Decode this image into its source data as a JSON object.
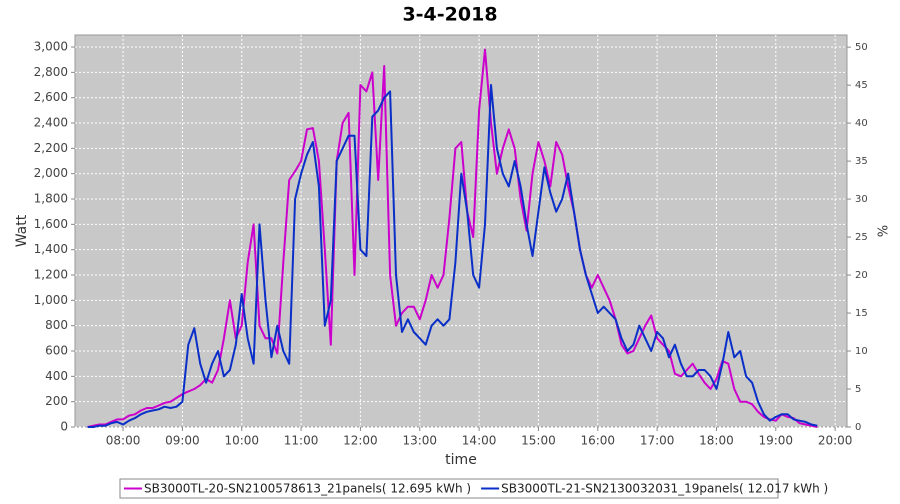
{
  "chart_data": {
    "type": "line",
    "title": "3-4-2018",
    "x_label": "time",
    "y_label": "Watt",
    "y2_label": "%",
    "xlim": [
      7.19,
      20.2
    ],
    "xticks": [
      {
        "value": 8,
        "label": "08:00"
      },
      {
        "value": 9,
        "label": "09:00"
      },
      {
        "value": 10,
        "label": "10:00"
      },
      {
        "value": 11,
        "label": "11:00"
      },
      {
        "value": 12,
        "label": "12:00"
      },
      {
        "value": 13,
        "label": "13:00"
      },
      {
        "value": 14,
        "label": "14:00"
      },
      {
        "value": 15,
        "label": "15:00"
      },
      {
        "value": 16,
        "label": "16:00"
      },
      {
        "value": 17,
        "label": "17:00"
      },
      {
        "value": 18,
        "label": "18:00"
      },
      {
        "value": 19,
        "label": "19:00"
      },
      {
        "value": 20,
        "label": "20:00"
      }
    ],
    "ylim": [
      0,
      3095
    ],
    "yticks": [
      0,
      200,
      400,
      600,
      800,
      {
        "value": 1000,
        "label": "1,000"
      },
      {
        "value": 1200,
        "label": "1,200"
      },
      {
        "value": 1400,
        "label": "1,400"
      },
      {
        "value": 1600,
        "label": "1,600"
      },
      {
        "value": 1800,
        "label": "1,800"
      },
      {
        "value": 2000,
        "label": "2,000"
      },
      {
        "value": 2200,
        "label": "2,200"
      },
      {
        "value": 2400,
        "label": "2,400"
      },
      {
        "value": 2600,
        "label": "2,600"
      },
      {
        "value": 2800,
        "label": "2,800"
      },
      {
        "value": 3000,
        "label": "3,000"
      }
    ],
    "y2lim": [
      0,
      51.6
    ],
    "y2ticks": [
      0,
      5,
      10,
      15,
      20,
      25,
      30,
      35,
      40,
      45,
      50
    ],
    "grid": true,
    "legend": "bottom",
    "x": [
      7.4,
      7.5,
      7.6,
      7.7,
      7.8,
      7.9,
      8.0,
      8.1,
      8.2,
      8.3,
      8.4,
      8.5,
      8.6,
      8.7,
      8.8,
      8.9,
      9.0,
      9.1,
      9.2,
      9.3,
      9.4,
      9.5,
      9.6,
      9.7,
      9.8,
      9.9,
      10.0,
      10.1,
      10.2,
      10.3,
      10.4,
      10.5,
      10.6,
      10.7,
      10.8,
      10.9,
      11.0,
      11.1,
      11.2,
      11.3,
      11.4,
      11.5,
      11.6,
      11.7,
      11.8,
      11.9,
      12.0,
      12.1,
      12.2,
      12.3,
      12.4,
      12.5,
      12.6,
      12.7,
      12.8,
      12.9,
      13.0,
      13.1,
      13.2,
      13.3,
      13.4,
      13.5,
      13.6,
      13.7,
      13.8,
      13.9,
      14.0,
      14.1,
      14.2,
      14.3,
      14.4,
      14.5,
      14.6,
      14.7,
      14.8,
      14.9,
      15.0,
      15.1,
      15.2,
      15.3,
      15.4,
      15.5,
      15.6,
      15.7,
      15.8,
      15.9,
      16.0,
      16.1,
      16.2,
      16.3,
      16.4,
      16.5,
      16.6,
      16.7,
      16.8,
      16.9,
      17.0,
      17.1,
      17.2,
      17.3,
      17.4,
      17.5,
      17.6,
      17.7,
      17.8,
      17.9,
      18.0,
      18.1,
      18.2,
      18.3,
      18.4,
      18.5,
      18.6,
      18.7,
      18.8,
      18.9,
      19.0,
      19.1,
      19.2,
      19.3,
      19.4,
      19.5,
      19.6,
      19.7
    ],
    "series": [
      {
        "name": "SB3000TL-20-SN2100578613_21panels( 12.695 kWh )",
        "color": "#cc00cc",
        "values": [
          0,
          10,
          20,
          20,
          40,
          60,
          60,
          90,
          100,
          130,
          150,
          150,
          170,
          190,
          200,
          230,
          260,
          280,
          300,
          330,
          380,
          350,
          450,
          700,
          1000,
          700,
          800,
          1300,
          1600,
          800,
          700,
          700,
          580,
          1300,
          1950,
          2020,
          2100,
          2350,
          2360,
          2100,
          1400,
          650,
          2100,
          2400,
          2480,
          1200,
          2700,
          2650,
          2800,
          1950,
          2850,
          1200,
          800,
          900,
          950,
          950,
          850,
          1000,
          1200,
          1100,
          1200,
          1650,
          2200,
          2250,
          1700,
          1500,
          2500,
          2980,
          2400,
          2000,
          2200,
          2350,
          2200,
          1800,
          1550,
          2000,
          2250,
          2100,
          1900,
          2250,
          2150,
          1900,
          1700,
          1400,
          1200,
          1100,
          1200,
          1100,
          1000,
          850,
          650,
          580,
          600,
          700,
          800,
          880,
          700,
          650,
          600,
          420,
          400,
          450,
          500,
          420,
          350,
          300,
          380,
          520,
          500,
          300,
          200,
          200,
          180,
          120,
          80,
          60,
          50,
          100,
          80,
          70,
          30,
          20,
          10,
          0
        ]
      },
      {
        "name": "SB3000TL-21-SN2130032031_19panels( 12.017 kWh )",
        "color": "#0a2fc8",
        "values": [
          0,
          0,
          10,
          10,
          30,
          40,
          20,
          50,
          70,
          100,
          120,
          130,
          140,
          160,
          150,
          160,
          200,
          650,
          780,
          500,
          350,
          500,
          600,
          400,
          450,
          650,
          1050,
          700,
          500,
          1600,
          1000,
          550,
          800,
          600,
          500,
          1800,
          2000,
          2150,
          2250,
          1900,
          800,
          1000,
          2100,
          2200,
          2300,
          2300,
          1400,
          1350,
          2450,
          2500,
          2600,
          2650,
          1200,
          750,
          850,
          750,
          700,
          650,
          800,
          850,
          800,
          850,
          1300,
          2000,
          1700,
          1200,
          1100,
          1600,
          2700,
          2200,
          2000,
          1900,
          2100,
          1900,
          1600,
          1350,
          1700,
          2050,
          1850,
          1700,
          1800,
          2000,
          1700,
          1400,
          1200,
          1050,
          900,
          950,
          900,
          850,
          700,
          600,
          650,
          800,
          700,
          600,
          750,
          700,
          550,
          650,
          500,
          400,
          400,
          450,
          450,
          400,
          300,
          500,
          750,
          550,
          600,
          400,
          350,
          200,
          100,
          50,
          80,
          100,
          100,
          60,
          50,
          40,
          20,
          10
        ]
      }
    ]
  }
}
